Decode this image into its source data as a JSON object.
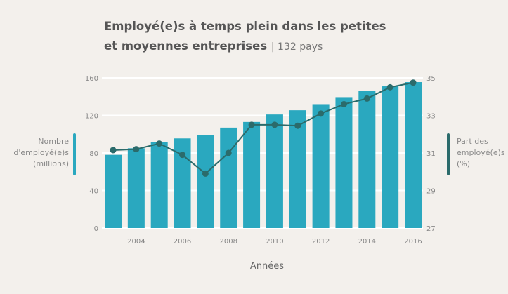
{
  "title": {
    "main_line1": "Employé(e)s à temps plein dans les petites",
    "main_line2": "et moyennes entreprises",
    "subtitle": "| 132 pays"
  },
  "chart_data": {
    "type": "bar+line",
    "x": [
      2003,
      2004,
      2005,
      2006,
      2007,
      2008,
      2009,
      2010,
      2011,
      2012,
      2013,
      2014,
      2015,
      2016
    ],
    "xticks": [
      "2004",
      "2006",
      "2008",
      "2010",
      "2012",
      "2014",
      "2016"
    ],
    "xlabel": "Années",
    "series": [
      {
        "name": "Nombre d'employé(e)s (millions)",
        "type": "bar",
        "axis": "left",
        "color": "#2aa8bf",
        "values": [
          78,
          85,
          91.5,
          95.5,
          99,
          107,
          113,
          121,
          125.5,
          132,
          139.5,
          146.5,
          151,
          155.5
        ]
      },
      {
        "name": "Part des employé(e)s (%)",
        "type": "line",
        "axis": "right",
        "color": "#2b6b6b",
        "values": [
          31.15,
          31.2,
          31.5,
          30.9,
          29.9,
          31.0,
          32.5,
          32.5,
          32.45,
          33.1,
          33.6,
          33.9,
          34.5,
          34.75
        ]
      }
    ],
    "ylim_left": [
      0,
      160
    ],
    "yticks_left": [
      "0",
      "40",
      "80",
      "120",
      "160"
    ],
    "ylim_right": [
      27,
      35
    ],
    "yticks_right": [
      "27",
      "29",
      "31",
      "33",
      "35"
    ],
    "grid": true
  },
  "legend": {
    "left": [
      "Nombre",
      "d'employé(e)s",
      "(millions)"
    ],
    "right": [
      "Part des",
      "employé(e)s",
      "(%)"
    ]
  }
}
